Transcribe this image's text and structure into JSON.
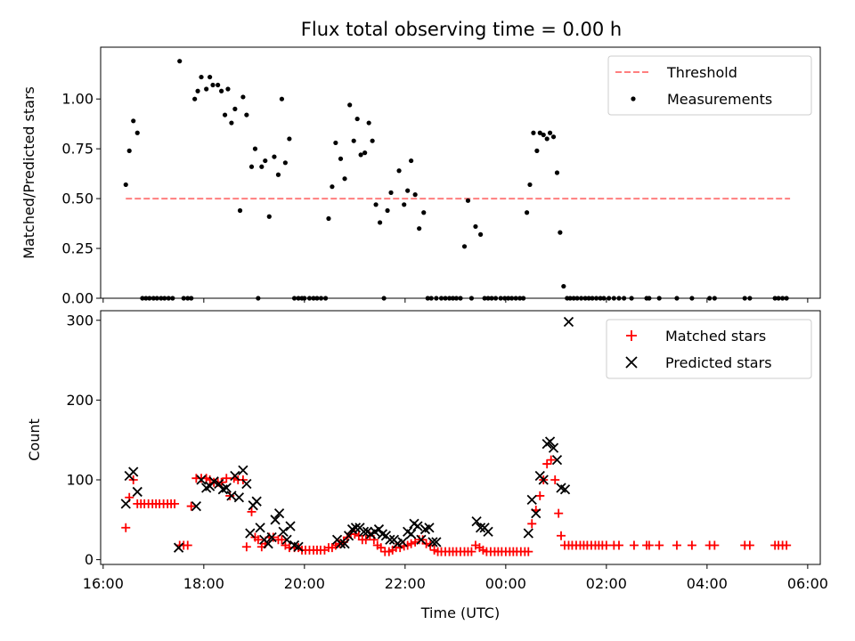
{
  "figure": {
    "title": "Flux total observing time = 0.00 h"
  },
  "chart_data": [
    {
      "type": "scatter",
      "ylabel": "Matched/Predicted stars",
      "xlabel": "",
      "xlim_hours": [
        15.95,
        30.25
      ],
      "ylim": [
        0,
        1.26
      ],
      "yticks": [
        0.0,
        0.25,
        0.5,
        0.75,
        1.0
      ],
      "ytick_labels": [
        "0.00",
        "0.25",
        "0.50",
        "0.75",
        "1.00"
      ],
      "legend_position": "top-right",
      "threshold": {
        "name": "Threshold",
        "value": 0.5,
        "x_range_hours": [
          16.45,
          29.65
        ],
        "color": "#ff7f7f",
        "style": "dashed"
      },
      "series": [
        {
          "name": "Measurements",
          "marker": "dot",
          "color": "#000000",
          "x": [
            16.45,
            16.52,
            16.6,
            16.68,
            16.78,
            16.85,
            16.92,
            17.0,
            17.07,
            17.15,
            17.22,
            17.3,
            17.38,
            17.52,
            17.6,
            17.68,
            17.75,
            17.82,
            17.88,
            17.95,
            18.05,
            18.12,
            18.18,
            18.28,
            18.35,
            18.42,
            18.48,
            18.55,
            18.62,
            18.72,
            18.78,
            18.85,
            18.95,
            19.02,
            19.08,
            19.15,
            19.22,
            19.3,
            19.4,
            19.48,
            19.55,
            19.62,
            19.7,
            19.8,
            19.88,
            19.95,
            20.0,
            20.1,
            20.18,
            20.25,
            20.33,
            20.42,
            20.48,
            20.55,
            20.62,
            20.72,
            20.8,
            20.9,
            20.98,
            21.05,
            21.12,
            21.2,
            21.28,
            21.35,
            21.42,
            21.5,
            21.58,
            21.65,
            21.72,
            21.88,
            21.98,
            22.05,
            22.12,
            22.2,
            22.28,
            22.37,
            22.45,
            22.52,
            22.62,
            22.72,
            22.8,
            22.88,
            22.95,
            23.02,
            23.1,
            23.18,
            23.25,
            23.32,
            23.4,
            23.5,
            23.58,
            23.65,
            23.72,
            23.8,
            23.9,
            23.98,
            24.05,
            24.12,
            24.2,
            24.28,
            24.35,
            24.42,
            24.48,
            24.55,
            24.62,
            24.68,
            24.75,
            24.82,
            24.88,
            24.95,
            25.02,
            25.08,
            25.15,
            25.22,
            25.28,
            25.35,
            25.42,
            25.5,
            25.58,
            25.65,
            25.72,
            25.8,
            25.88,
            25.95,
            26.05,
            26.15,
            26.25,
            26.35,
            26.5,
            26.8,
            26.85,
            27.05,
            27.4,
            27.7,
            28.05,
            28.15,
            28.75,
            28.85,
            29.35,
            29.42,
            29.5,
            29.58
          ],
          "y": [
            0.57,
            0.74,
            0.89,
            0.83,
            0.0,
            0.0,
            0.0,
            0.0,
            0.0,
            0.0,
            0.0,
            0.0,
            0.0,
            1.19,
            0.0,
            0.0,
            0.0,
            1.0,
            1.04,
            1.11,
            1.05,
            1.11,
            1.07,
            1.07,
            1.04,
            0.92,
            1.05,
            0.88,
            0.95,
            0.44,
            1.01,
            0.92,
            0.66,
            0.75,
            0.0,
            0.66,
            0.69,
            0.41,
            0.71,
            0.62,
            1.0,
            0.68,
            0.8,
            0.0,
            0.0,
            0.0,
            0.0,
            0.0,
            0.0,
            0.0,
            0.0,
            0.0,
            0.4,
            0.56,
            0.78,
            0.7,
            0.6,
            0.97,
            0.79,
            0.9,
            0.72,
            0.73,
            0.88,
            0.79,
            0.47,
            0.38,
            0.0,
            0.44,
            0.53,
            0.64,
            0.47,
            0.54,
            0.69,
            0.52,
            0.35,
            0.43,
            0.0,
            0.0,
            0.0,
            0.0,
            0.0,
            0.0,
            0.0,
            0.0,
            0.0,
            0.26,
            0.49,
            0.0,
            0.36,
            0.32,
            0.0,
            0.0,
            0.0,
            0.0,
            0.0,
            0.0,
            0.0,
            0.0,
            0.0,
            0.0,
            0.0,
            0.43,
            0.57,
            0.83,
            0.74,
            0.83,
            0.82,
            0.8,
            0.83,
            0.81,
            0.63,
            0.33,
            0.06,
            0.0,
            0.0,
            0.0,
            0.0,
            0.0,
            0.0,
            0.0,
            0.0,
            0.0,
            0.0,
            0.0,
            0.0,
            0.0,
            0.0,
            0.0,
            0.0,
            0.0,
            0.0,
            0.0,
            0.0,
            0.0,
            0.0,
            0.0,
            0.0,
            0.0,
            0.0,
            0.0,
            0.0,
            0.0
          ]
        }
      ]
    },
    {
      "type": "scatter",
      "ylabel": "Count",
      "xlabel": "Time (UTC)",
      "xlim_hours": [
        15.95,
        30.25
      ],
      "ylim": [
        -6,
        312
      ],
      "yticks": [
        0,
        100,
        200,
        300
      ],
      "ytick_labels": [
        "0",
        "100",
        "200",
        "300"
      ],
      "xticks_hours": [
        16,
        18,
        20,
        22,
        24,
        26,
        28,
        30
      ],
      "xtick_labels": [
        "16:00",
        "18:00",
        "20:00",
        "22:00",
        "00:00",
        "02:00",
        "04:00",
        "06:00"
      ],
      "legend_position": "top-right",
      "series": [
        {
          "name": "Matched stars",
          "marker": "plus",
          "color": "#ff0000",
          "x": [
            16.45,
            16.52,
            16.6,
            16.68,
            16.75,
            16.82,
            16.9,
            16.98,
            17.05,
            17.12,
            17.2,
            17.28,
            17.35,
            17.42,
            17.52,
            17.6,
            17.68,
            17.75,
            17.85,
            17.95,
            18.05,
            18.12,
            18.2,
            18.28,
            18.35,
            18.45,
            18.52,
            18.6,
            18.68,
            18.78,
            18.85,
            18.95,
            19.02,
            19.08,
            19.15,
            19.22,
            19.3,
            19.38,
            19.48,
            19.55,
            19.62,
            19.7,
            19.8,
            19.88,
            19.95,
            20.02,
            20.1,
            20.18,
            20.25,
            20.32,
            20.4,
            20.48,
            20.55,
            20.62,
            20.7,
            20.78,
            20.85,
            20.92,
            21.0,
            21.08,
            21.15,
            21.22,
            21.3,
            21.38,
            21.45,
            21.52,
            21.6,
            21.68,
            21.75,
            21.82,
            21.9,
            21.98,
            22.05,
            22.12,
            22.2,
            22.28,
            22.35,
            22.42,
            22.5,
            22.58,
            22.65,
            22.72,
            22.8,
            22.88,
            22.95,
            23.02,
            23.1,
            23.18,
            23.25,
            23.32,
            23.4,
            23.48,
            23.55,
            23.62,
            23.7,
            23.78,
            23.85,
            23.92,
            24.0,
            24.08,
            24.15,
            24.22,
            24.3,
            24.38,
            24.45,
            24.52,
            24.6,
            24.68,
            24.75,
            24.82,
            24.9,
            24.98,
            25.05,
            25.1,
            25.17,
            25.25,
            25.32,
            25.4,
            25.48,
            25.55,
            25.62,
            25.7,
            25.78,
            25.85,
            25.92,
            26.0,
            26.15,
            26.25,
            26.55,
            26.8,
            26.85,
            27.05,
            27.4,
            27.7,
            28.05,
            28.15,
            28.75,
            28.85,
            29.35,
            29.42,
            29.5,
            29.58
          ],
          "y": [
            40,
            78,
            100,
            70,
            70,
            70,
            70,
            70,
            70,
            70,
            70,
            70,
            70,
            70,
            18,
            18,
            18,
            67,
            102,
            102,
            102,
            100,
            97,
            97,
            97,
            102,
            80,
            102,
            100,
            100,
            16,
            60,
            28,
            25,
            16,
            20,
            28,
            28,
            25,
            25,
            18,
            15,
            15,
            15,
            12,
            12,
            12,
            12,
            12,
            12,
            12,
            15,
            15,
            18,
            20,
            22,
            28,
            32,
            32,
            30,
            25,
            25,
            30,
            25,
            18,
            15,
            10,
            10,
            12,
            15,
            15,
            17,
            18,
            20,
            22,
            25,
            25,
            20,
            18,
            12,
            10,
            10,
            10,
            10,
            10,
            10,
            10,
            10,
            10,
            10,
            18,
            15,
            12,
            10,
            10,
            10,
            10,
            10,
            10,
            10,
            10,
            10,
            10,
            10,
            10,
            45,
            62,
            80,
            100,
            120,
            125,
            100,
            58,
            30,
            18,
            18,
            18,
            18,
            18,
            18,
            18,
            18,
            18,
            18,
            18,
            18,
            18,
            18,
            18,
            18,
            18,
            18,
            18,
            18,
            18,
            18,
            18,
            18,
            18,
            18,
            18,
            18
          ]
        },
        {
          "name": "Predicted stars",
          "marker": "x",
          "color": "#000000",
          "x": [
            16.45,
            16.52,
            16.6,
            16.68,
            17.5,
            17.85,
            17.95,
            18.05,
            18.12,
            18.2,
            18.3,
            18.38,
            18.45,
            18.55,
            18.62,
            18.7,
            18.78,
            18.85,
            18.92,
            18.98,
            19.05,
            19.12,
            19.2,
            19.28,
            19.35,
            19.42,
            19.5,
            19.58,
            19.65,
            19.72,
            19.8,
            19.88,
            20.65,
            20.72,
            20.8,
            20.88,
            20.95,
            21.02,
            21.1,
            21.18,
            21.25,
            21.32,
            21.4,
            21.48,
            21.55,
            21.62,
            21.7,
            21.78,
            21.85,
            21.95,
            22.05,
            22.12,
            22.18,
            22.25,
            22.32,
            22.4,
            22.48,
            22.55,
            22.62,
            23.42,
            23.5,
            23.58,
            23.65,
            24.45,
            24.52,
            24.6,
            24.68,
            24.75,
            24.82,
            24.88,
            24.95,
            25.02,
            25.1,
            25.18,
            25.25
          ],
          "y": [
            70,
            105,
            110,
            85,
            15,
            67,
            100,
            90,
            92,
            98,
            95,
            88,
            90,
            80,
            105,
            78,
            112,
            95,
            33,
            68,
            73,
            40,
            25,
            20,
            28,
            50,
            58,
            35,
            25,
            42,
            18,
            16,
            25,
            20,
            20,
            30,
            38,
            40,
            40,
            35,
            35,
            32,
            35,
            38,
            32,
            30,
            25,
            25,
            20,
            22,
            35,
            32,
            45,
            42,
            25,
            38,
            40,
            22,
            22,
            48,
            40,
            40,
            35,
            33,
            75,
            58,
            105,
            100,
            145,
            148,
            140,
            125,
            90,
            88,
            298
          ]
        }
      ]
    }
  ]
}
